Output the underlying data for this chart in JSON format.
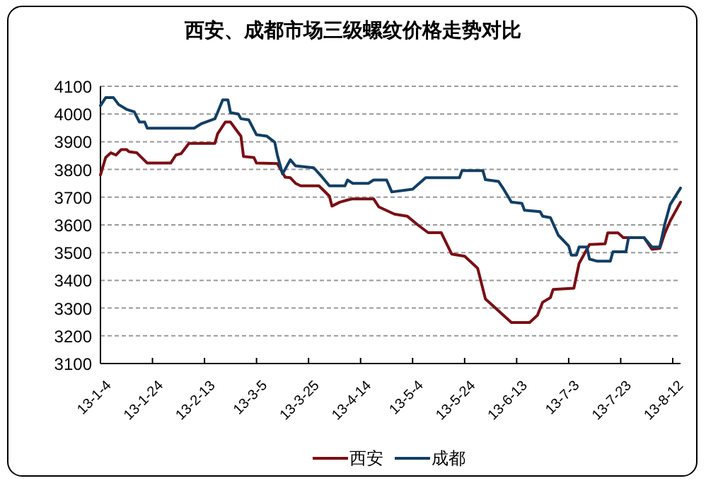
{
  "chart_data": {
    "type": "line",
    "title": "西安、成都市场三级螺纹价格走势对比",
    "ylim": [
      3100,
      4100
    ],
    "yticks": [
      3100,
      3200,
      3300,
      3400,
      3500,
      3600,
      3700,
      3800,
      3900,
      4000,
      4100
    ],
    "xlim": [
      "--01-04",
      "--08-15"
    ],
    "xticks": [
      {
        "value": "--01-04",
        "label": "13-1-4"
      },
      {
        "value": "--01-24",
        "label": "13-1-24"
      },
      {
        "value": "--02-13",
        "label": "13-2-13"
      },
      {
        "value": "--03-05",
        "label": "13-3-5"
      },
      {
        "value": "--03-25",
        "label": "13-3-25"
      },
      {
        "value": "--04-14",
        "label": "13-4-14"
      },
      {
        "value": "--05-04",
        "label": "13-5-4"
      },
      {
        "value": "--05-24",
        "label": "13-5-24"
      },
      {
        "value": "--06-13",
        "label": "13-6-13"
      },
      {
        "value": "--07-03",
        "label": "13-7-3"
      },
      {
        "value": "--07-23",
        "label": "13-7-23"
      },
      {
        "value": "--08-12",
        "label": "13-8-12"
      }
    ],
    "grid": "y",
    "legend": "bottom",
    "marker": "none",
    "line_style": "solid",
    "series": [
      {
        "name": "西安",
        "color": "#7b0f14",
        "x": [
          "--01-04",
          "--01-06",
          "--01-08",
          "--01-10",
          "--01-12",
          "--01-14",
          "--01-15",
          "--01-18",
          "--01-22",
          "--01-31",
          "--02-02",
          "--02-04",
          "--02-07",
          "--02-17",
          "--02-18",
          "--02-21",
          "--02-23",
          "--02-25",
          "--02-27",
          "--02-28",
          "--03-04",
          "--03-05",
          "--03-13",
          "--03-16",
          "--03-18",
          "--03-20",
          "--03-22",
          "--03-29",
          "--04-02",
          "--04-03",
          "--04-06",
          "--04-09",
          "--04-11",
          "--04-19",
          "--04-21",
          "--04-27",
          "--05-02",
          "--05-06",
          "--05-10",
          "--05-15",
          "--05-19",
          "--05-24",
          "--05-29",
          "--06-01",
          "--06-05",
          "--06-07",
          "--06-11",
          "--06-18",
          "--06-21",
          "--06-23",
          "--06-26",
          "--06-27",
          "--07-05",
          "--07-07",
          "--07-11",
          "--07-17",
          "--07-18",
          "--07-22",
          "--07-24",
          "--08-01",
          "--08-04",
          "--08-07",
          "--08-09",
          "--08-11",
          "--08-15"
        ],
        "values": [
          3780,
          3843,
          3860,
          3852,
          3872,
          3872,
          3864,
          3860,
          3823,
          3823,
          3852,
          3857,
          3894,
          3894,
          3928,
          3971,
          3971,
          3945,
          3920,
          3847,
          3843,
          3823,
          3821,
          3772,
          3770,
          3750,
          3741,
          3741,
          3704,
          3668,
          3682,
          3690,
          3694,
          3694,
          3665,
          3639,
          3631,
          3600,
          3572,
          3572,
          3495,
          3487,
          3444,
          3333,
          3299,
          3282,
          3248,
          3248,
          3274,
          3321,
          3338,
          3367,
          3372,
          3461,
          3529,
          3532,
          3571,
          3571,
          3554,
          3554,
          3512,
          3515,
          3571,
          3614,
          3682
        ]
      },
      {
        "name": "成都",
        "color": "#123f66",
        "x": [
          "--01-04",
          "--01-06",
          "--01-09",
          "--01-11",
          "--01-14",
          "--01-17",
          "--01-19",
          "--01-21",
          "--01-22",
          "--02-09",
          "--02-12",
          "--02-17",
          "--02-18",
          "--02-20",
          "--02-22",
          "--02-23",
          "--02-26",
          "--02-27",
          "--03-02",
          "--03-05",
          "--03-09",
          "--03-12",
          "--03-13",
          "--03-15",
          "--03-18",
          "--03-20",
          "--03-27",
          "--03-30",
          "--04-02",
          "--04-08",
          "--04-09",
          "--04-11",
          "--04-17",
          "--04-19",
          "--04-24",
          "--04-26",
          "--05-04",
          "--05-09",
          "--05-22",
          "--05-23",
          "--05-31",
          "--06-01",
          "--06-06",
          "--06-08",
          "--06-11",
          "--06-15",
          "--06-16",
          "--06-22",
          "--06-23",
          "--06-26",
          "--06-29",
          "--07-03",
          "--07-04",
          "--07-06",
          "--07-07",
          "--07-10",
          "--07-11",
          "--07-14",
          "--07-19",
          "--07-20",
          "--07-25",
          "--07-26",
          "--08-01",
          "--08-04",
          "--08-07",
          "--08-09",
          "--08-11",
          "--08-15"
        ],
        "values": [
          4030,
          4059,
          4059,
          4034,
          4017,
          4008,
          3971,
          3971,
          3949,
          3949,
          3966,
          3983,
          4005,
          4051,
          4051,
          4005,
          4000,
          3983,
          3979,
          3925,
          3920,
          3898,
          3852,
          3784,
          3835,
          3813,
          3806,
          3775,
          3741,
          3741,
          3762,
          3750,
          3750,
          3762,
          3762,
          3719,
          3729,
          3770,
          3770,
          3796,
          3796,
          3763,
          3757,
          3729,
          3682,
          3678,
          3653,
          3648,
          3631,
          3626,
          3563,
          3524,
          3491,
          3491,
          3520,
          3520,
          3477,
          3469,
          3469,
          3503,
          3503,
          3554,
          3554,
          3520,
          3520,
          3605,
          3673,
          3733
        ]
      }
    ]
  }
}
